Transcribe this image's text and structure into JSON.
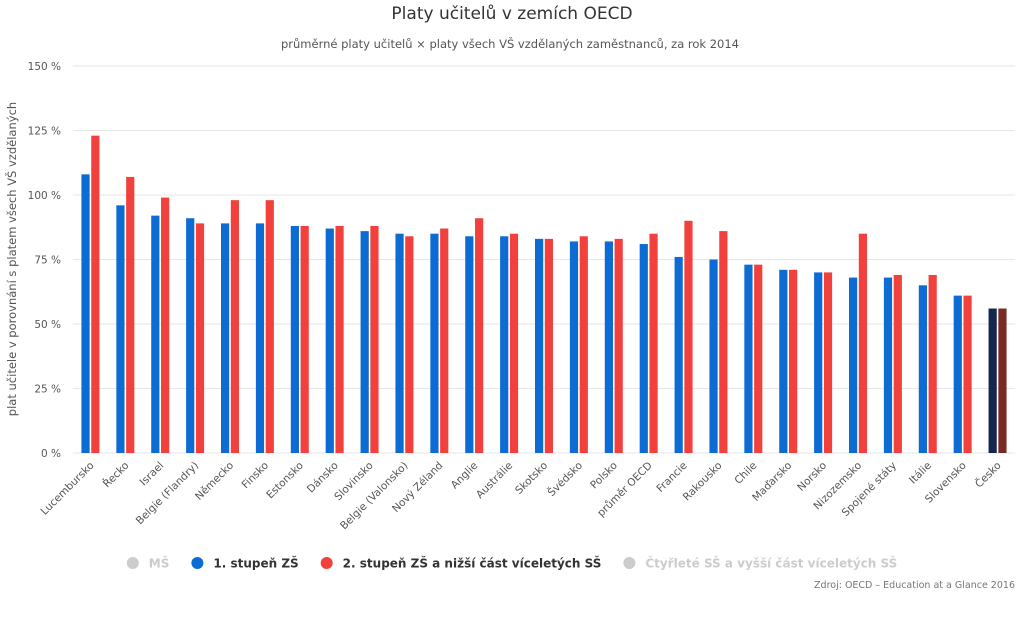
{
  "chart_data": {
    "type": "bar",
    "title": "Platy učitelů v zemích OECD",
    "subtitle": "průměrné platy učitelů × platy všech VŠ vzdělaných zaměstnanců, za rok 2014",
    "ylabel": "plat učitele v porovnání s platem všech VŠ vzdělaných",
    "xlabel": "",
    "ylim": [
      0,
      150
    ],
    "yticks": [
      0,
      25,
      50,
      75,
      100,
      125,
      150
    ],
    "ytick_labels": [
      "0 %",
      "25 %",
      "50 %",
      "75 %",
      "100 %",
      "125 %",
      "150 %"
    ],
    "grid": true,
    "categories": [
      "Lucembursko",
      "Řecko",
      "Israel",
      "Belgie (Flandry)",
      "Německo",
      "Finsko",
      "Estonsko",
      "Dánsko",
      "Slovinsko",
      "Belgie (Valonsko)",
      "Nový Zéland",
      "Anglie",
      "Austrálie",
      "Skotsko",
      "Švédsko",
      "Polsko",
      "průměr OECD",
      "Francie",
      "Rakousko",
      "Chile",
      "Maďarsko",
      "Norsko",
      "Nizozemsko",
      "Spojené státy",
      "Itálie",
      "Slovensko",
      "Česko"
    ],
    "series": [
      {
        "name": "1. stupeň ZŠ",
        "color": "#0d6bd4",
        "visible": true,
        "values": [
          108,
          96,
          92,
          91,
          89,
          89,
          88,
          87,
          86,
          85,
          85,
          84,
          84,
          83,
          82,
          82,
          81,
          76,
          75,
          73,
          71,
          70,
          68,
          68,
          65,
          61,
          56
        ]
      },
      {
        "name": "2. stupeň ZŠ a nižší část víceletých SŠ",
        "color": "#f2413d",
        "visible": true,
        "values": [
          123,
          107,
          99,
          89,
          98,
          98,
          88,
          88,
          88,
          84,
          87,
          91,
          85,
          83,
          84,
          83,
          85,
          90,
          86,
          73,
          71,
          70,
          85,
          69,
          69,
          61,
          56
        ]
      }
    ],
    "highlight": {
      "category": "Česko",
      "colors": [
        "#14284d",
        "#7a2a24"
      ]
    },
    "legend": {
      "position": "bottom",
      "items": [
        {
          "label": "MŠ",
          "color": "#cccccc",
          "text_color": "#cccccc",
          "visible": false
        },
        {
          "label": "1. stupeň ZŠ",
          "color": "#0d6bd4",
          "text_color": "#333333",
          "visible": true
        },
        {
          "label": "2. stupeň ZŠ a nižší část víceletých SŠ",
          "color": "#f2413d",
          "text_color": "#333333",
          "visible": true
        },
        {
          "label": "Čtyřleté SŠ a vyšší část víceletých SŠ",
          "color": "#cccccc",
          "text_color": "#cccccc",
          "visible": false
        }
      ]
    },
    "credits": "Zdroj: OECD – Education at a Glance 2016"
  }
}
